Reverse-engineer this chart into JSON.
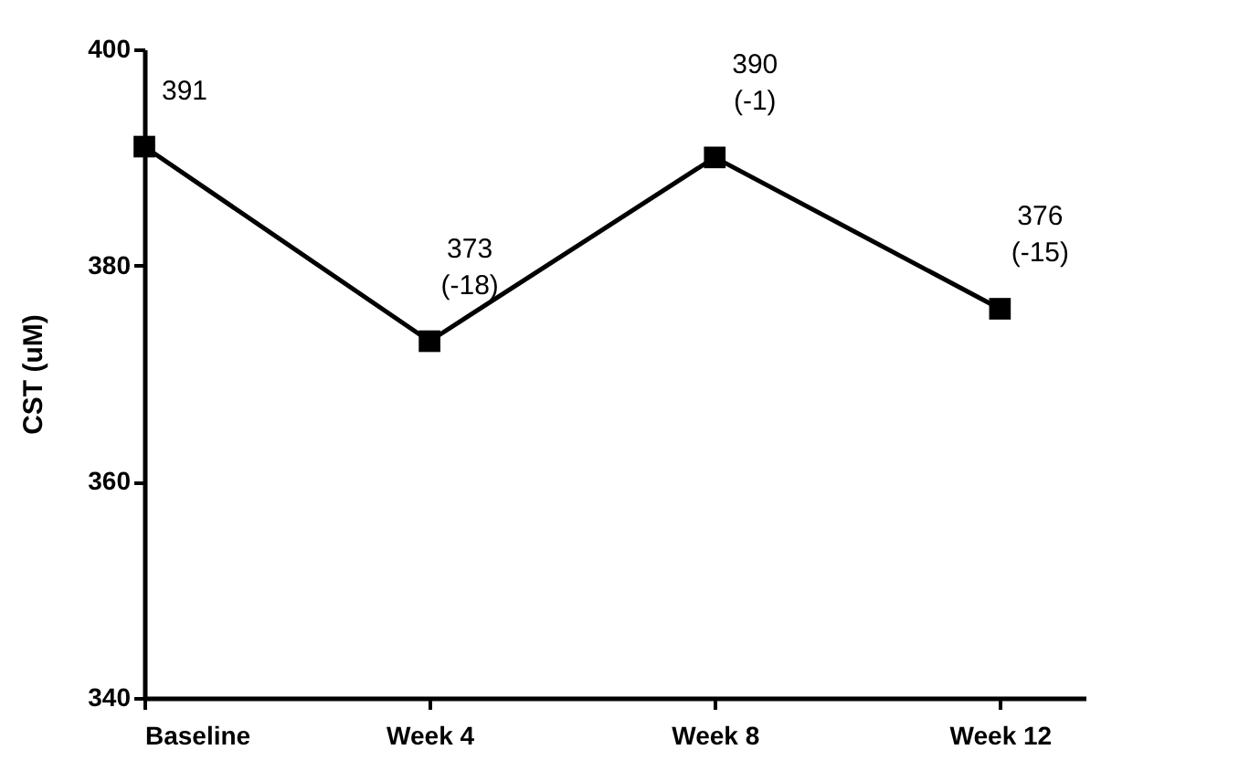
{
  "chart_data": {
    "type": "line",
    "ylabel": "CST (uM)",
    "categories": [
      "Baseline",
      "Week 4",
      "Week 8",
      "Week 12"
    ],
    "series": [
      {
        "color": "#000000",
        "values": [
          391,
          373,
          390,
          376
        ],
        "value_labels": [
          "391",
          "373\n(-18)",
          "390\n(-1)",
          "376\n(-15)"
        ]
      }
    ],
    "ylim": [
      340,
      400
    ],
    "yticks": [
      340,
      360,
      380,
      400
    ],
    "grid": false,
    "marker": "square",
    "line_style": "solid"
  }
}
